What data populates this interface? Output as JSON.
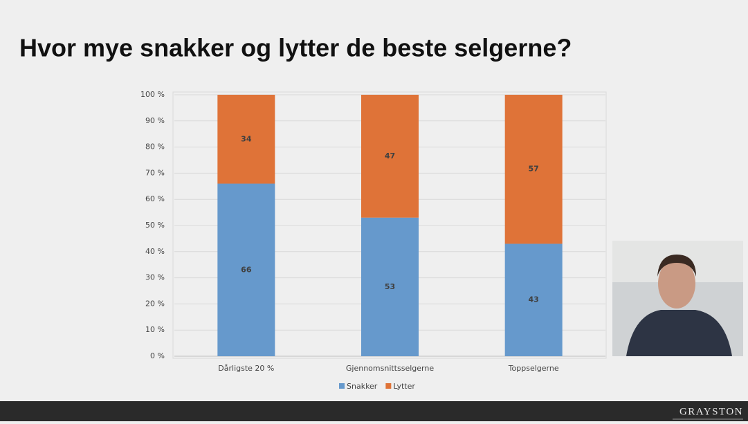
{
  "chart_data": {
    "type": "stacked_bar",
    "title": "Hvor mye snakker og lytter de beste selgerne?",
    "categories": [
      "Dårligste 20 %",
      "Gjennomsnittsselgerne",
      "Toppselgerne"
    ],
    "series": [
      {
        "name": "Snakker",
        "color": "#6699cc",
        "values": [
          66,
          53,
          43
        ]
      },
      {
        "name": "Lytter",
        "color": "#df7338",
        "values": [
          34,
          47,
          57
        ]
      }
    ],
    "ylim": [
      0,
      100
    ],
    "yticks": [
      {
        "value": 0,
        "label": "0 %"
      },
      {
        "value": 10,
        "label": "10 %"
      },
      {
        "value": 20,
        "label": "20 %"
      },
      {
        "value": 30,
        "label": "30 %"
      },
      {
        "value": 40,
        "label": "40 %"
      },
      {
        "value": 50,
        "label": "50 %"
      },
      {
        "value": 60,
        "label": "60 %"
      },
      {
        "value": 70,
        "label": "70 %"
      },
      {
        "value": 80,
        "label": "80 %"
      },
      {
        "value": 90,
        "label": "90 %"
      },
      {
        "value": 100,
        "label": "100 %"
      }
    ],
    "grid": true,
    "legend": "bottom"
  },
  "footer": {
    "brand": "GRAYSTON"
  }
}
